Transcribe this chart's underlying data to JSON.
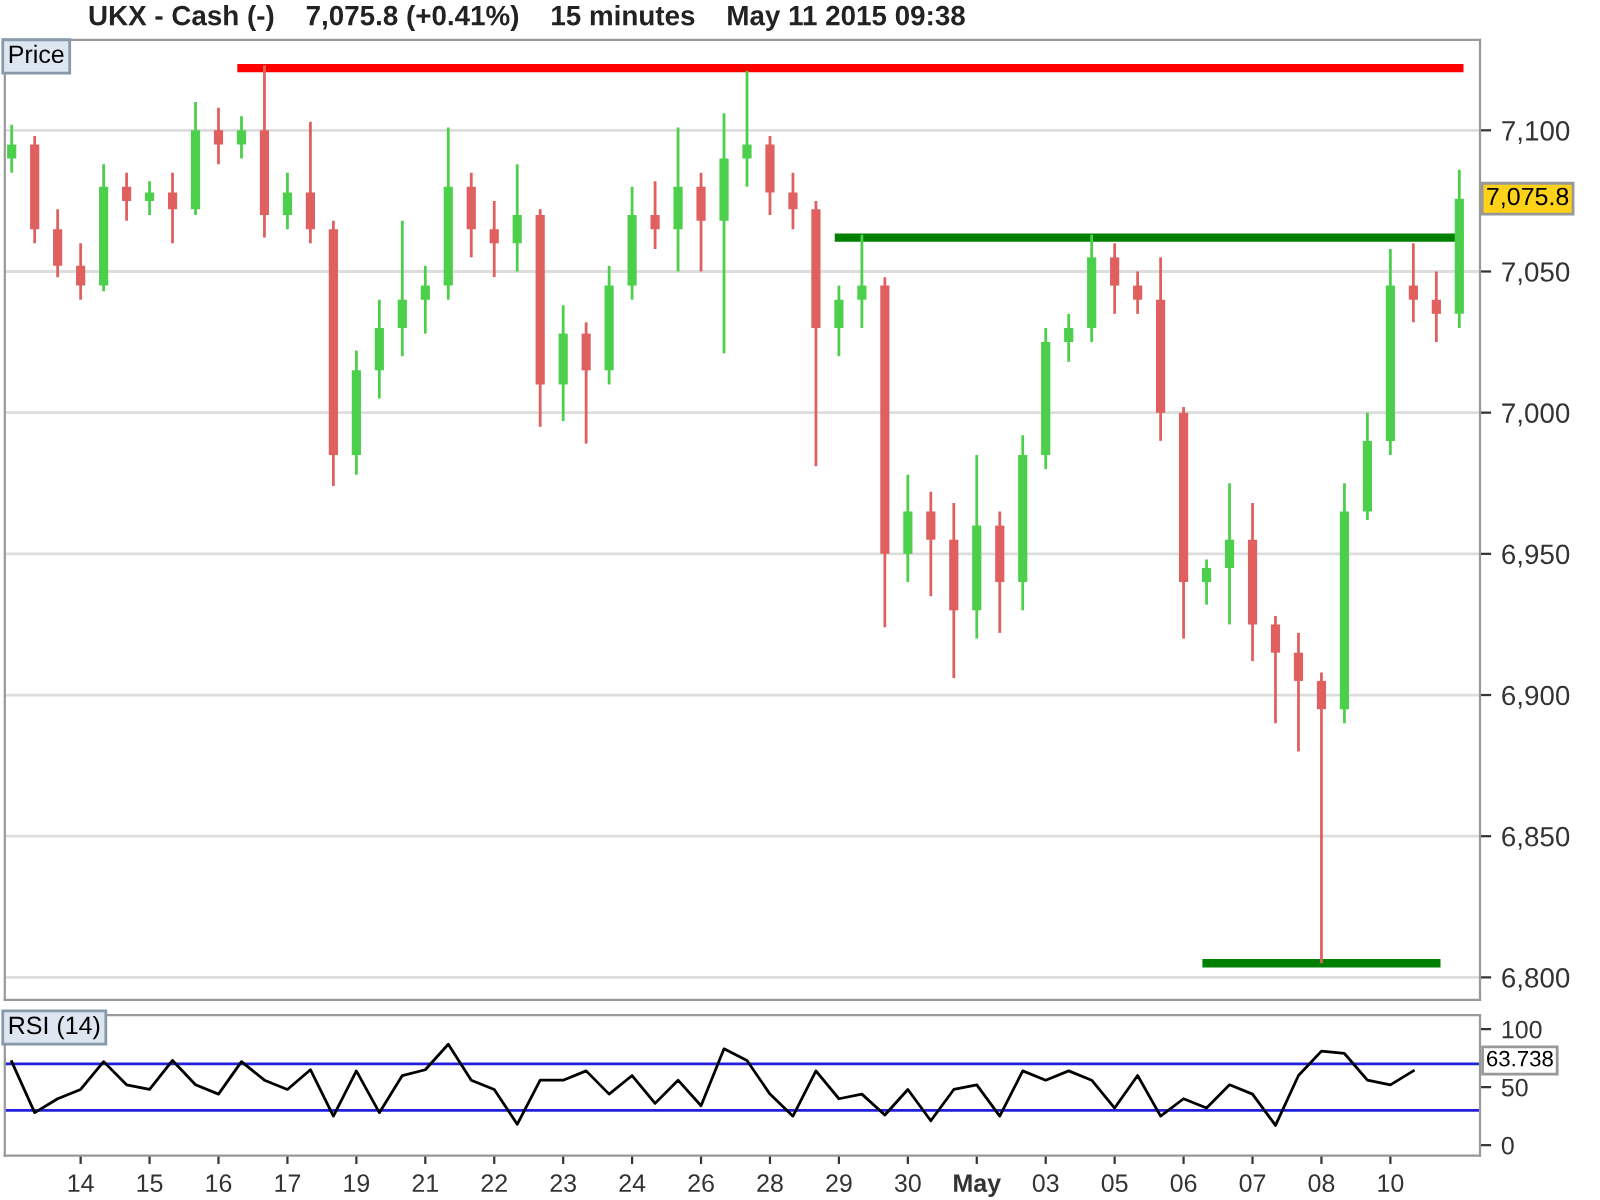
{
  "chart_data": [
    {
      "type": "candlestick",
      "title": "UKX - Cash (-)    7,075.8 (+0.41%)    15 minutes    May 11 2015 09:38",
      "ylabel": "Price",
      "categories": [
        null,
        null,
        null,
        null,
        null,
        null,
        null,
        null,
        null,
        null,
        null,
        null,
        null,
        null,
        null,
        null,
        null,
        null,
        null,
        null,
        null,
        null,
        null,
        null,
        null,
        null,
        null,
        null,
        null,
        null,
        null,
        null,
        null,
        null,
        null,
        null,
        null,
        null,
        null,
        null,
        null,
        null,
        null,
        null,
        null,
        null,
        null,
        null,
        null,
        null,
        null,
        null,
        null,
        null,
        null,
        null,
        null,
        null,
        null,
        null,
        null,
        null,
        null,
        null
      ],
      "ohlc": [
        [
          7090,
          7102,
          7085,
          7095
        ],
        [
          7095,
          7098,
          7060,
          7065
        ],
        [
          7065,
          7072,
          7048,
          7052
        ],
        [
          7052,
          7060,
          7040,
          7045
        ],
        [
          7045,
          7088,
          7043,
          7080
        ],
        [
          7080,
          7085,
          7068,
          7075
        ],
        [
          7075,
          7082,
          7070,
          7078
        ],
        [
          7078,
          7085,
          7060,
          7072
        ],
        [
          7072,
          7110,
          7070,
          7100
        ],
        [
          7100,
          7108,
          7088,
          7095
        ],
        [
          7095,
          7105,
          7090,
          7100
        ],
        [
          7100,
          7123,
          7062,
          7070
        ],
        [
          7070,
          7085,
          7065,
          7078
        ],
        [
          7078,
          7103,
          7060,
          7065
        ],
        [
          7065,
          7068,
          6974,
          6985
        ],
        [
          6985,
          7022,
          6978,
          7015
        ],
        [
          7015,
          7040,
          7005,
          7030
        ],
        [
          7030,
          7068,
          7020,
          7040
        ],
        [
          7040,
          7052,
          7028,
          7045
        ],
        [
          7045,
          7101,
          7040,
          7080
        ],
        [
          7080,
          7085,
          7055,
          7065
        ],
        [
          7065,
          7075,
          7048,
          7060
        ],
        [
          7060,
          7088,
          7050,
          7070
        ],
        [
          7070,
          7072,
          6995,
          7010
        ],
        [
          7010,
          7038,
          6997,
          7028
        ],
        [
          7028,
          7032,
          6989,
          7015
        ],
        [
          7015,
          7052,
          7010,
          7045
        ],
        [
          7045,
          7080,
          7040,
          7070
        ],
        [
          7070,
          7082,
          7058,
          7065
        ],
        [
          7065,
          7101,
          7050,
          7080
        ],
        [
          7080,
          7085,
          7050,
          7068
        ],
        [
          7068,
          7106,
          7021,
          7090
        ],
        [
          7090,
          7121,
          7080,
          7095
        ],
        [
          7095,
          7098,
          7070,
          7078
        ],
        [
          7078,
          7085,
          7065,
          7072
        ],
        [
          7072,
          7075,
          6981,
          7030
        ],
        [
          7030,
          7045,
          7020,
          7040
        ],
        [
          7040,
          7063,
          7030,
          7045
        ],
        [
          7045,
          7048,
          6924,
          6950
        ],
        [
          6950,
          6978,
          6940,
          6965
        ],
        [
          6965,
          6972,
          6935,
          6955
        ],
        [
          6955,
          6968,
          6906,
          6930
        ],
        [
          6930,
          6985,
          6920,
          6960
        ],
        [
          6960,
          6965,
          6922,
          6940
        ],
        [
          6940,
          6992,
          6930,
          6985
        ],
        [
          6985,
          7030,
          6980,
          7025
        ],
        [
          7025,
          7035,
          7018,
          7030
        ],
        [
          7030,
          7063,
          7025,
          7055
        ],
        [
          7055,
          7060,
          7035,
          7045
        ],
        [
          7045,
          7050,
          7035,
          7040
        ],
        [
          7040,
          7055,
          6990,
          7000
        ],
        [
          7000,
          7002,
          6920,
          6940
        ],
        [
          6940,
          6948,
          6932,
          6945
        ],
        [
          6945,
          6975,
          6925,
          6955
        ],
        [
          6955,
          6968,
          6912,
          6925
        ],
        [
          6925,
          6928,
          6890,
          6915
        ],
        [
          6915,
          6922,
          6880,
          6905
        ],
        [
          6905,
          6908,
          6805,
          6895
        ],
        [
          6895,
          6975,
          6890,
          6965
        ],
        [
          6965,
          7000,
          6962,
          6990
        ],
        [
          6990,
          7058,
          6985,
          7045
        ],
        [
          7045,
          7060,
          7032,
          7040
        ],
        [
          7040,
          7050,
          7025,
          7035
        ],
        [
          7035,
          7086,
          7030,
          7075.8
        ]
      ],
      "series": [
        {
          "type": "line",
          "color": "#ff0000",
          "values": [
            null,
            null,
            null,
            null,
            null,
            null,
            null,
            null,
            null,
            null,
            7122,
            7122,
            7122,
            7122,
            7122,
            7122,
            7122,
            7122,
            7122,
            7122,
            7122,
            7122,
            7122,
            7122,
            7122,
            7122,
            7122,
            7122,
            7122,
            7122,
            7122,
            7122,
            7122,
            7122,
            7122,
            7122,
            7122,
            7122,
            7122,
            7122,
            7122,
            7122,
            7122,
            7122,
            7122,
            7122,
            7122,
            7122,
            7122,
            7122,
            7122,
            7122,
            7122,
            7122,
            7122,
            7122,
            7122,
            7122,
            7122,
            7122,
            7122,
            7122,
            7122,
            7122
          ]
        },
        {
          "type": "line",
          "color": "#008000",
          "values": [
            null,
            null,
            null,
            null,
            null,
            null,
            null,
            null,
            null,
            null,
            null,
            null,
            null,
            null,
            null,
            null,
            null,
            null,
            null,
            null,
            null,
            null,
            null,
            null,
            null,
            null,
            null,
            null,
            null,
            null,
            null,
            null,
            null,
            null,
            null,
            null,
            7062,
            7062,
            7062,
            7062,
            7062,
            7062,
            7062,
            7062,
            7062,
            7062,
            7062,
            7062,
            7062,
            7062,
            7062,
            7062,
            7062,
            7062,
            7062,
            7062,
            7062,
            7062,
            7062,
            7062,
            7062,
            7062,
            7062,
            7062
          ]
        },
        {
          "type": "line",
          "color": "#008000",
          "values": [
            null,
            null,
            null,
            null,
            null,
            null,
            null,
            null,
            null,
            null,
            null,
            null,
            null,
            null,
            null,
            null,
            null,
            null,
            null,
            null,
            null,
            null,
            null,
            null,
            null,
            null,
            null,
            null,
            null,
            null,
            null,
            null,
            null,
            null,
            null,
            null,
            null,
            null,
            null,
            null,
            null,
            null,
            null,
            null,
            null,
            null,
            null,
            null,
            null,
            null,
            null,
            null,
            6805,
            6805,
            6805,
            6805,
            6805,
            6805,
            6805,
            6805,
            6805,
            6805,
            6805,
            null
          ]
        }
      ],
      "ylim": [
        6792,
        7132
      ],
      "yticks": [
        {
          "value": 6800,
          "label": "6,800"
        },
        {
          "value": 6850,
          "label": "6,850"
        },
        {
          "value": 6900,
          "label": "6,900"
        },
        {
          "value": 6950,
          "label": "6,950"
        },
        {
          "value": 7000,
          "label": "7,000"
        },
        {
          "value": 7050,
          "label": "7,050"
        },
        {
          "value": 7100,
          "label": "7,100"
        }
      ],
      "annotations": [
        "7,075.8"
      ],
      "grid": "y"
    },
    {
      "type": "line",
      "ylabel": "RSI (14)",
      "categories": [
        null,
        null,
        null,
        "14",
        null,
        null,
        "15",
        null,
        null,
        "16",
        null,
        null,
        "17",
        null,
        null,
        "19",
        null,
        null,
        "21",
        null,
        null,
        "22",
        null,
        null,
        "23",
        null,
        null,
        "24",
        null,
        null,
        "26",
        null,
        null,
        "28",
        null,
        null,
        "29",
        null,
        null,
        "30",
        null,
        null,
        "May",
        null,
        null,
        "03",
        null,
        null,
        "05",
        null,
        null,
        "06",
        null,
        null,
        "07",
        null,
        null,
        "08",
        null,
        null,
        "10",
        null,
        null,
        null
      ],
      "series": [
        {
          "color": "#000000",
          "values": [
            72,
            28,
            40,
            48,
            72,
            52,
            48,
            73,
            52,
            44,
            72,
            56,
            48,
            65,
            25,
            64,
            28,
            60,
            65,
            87,
            56,
            48,
            18,
            56,
            56,
            64,
            44,
            60,
            36,
            56,
            34,
            83,
            73,
            44,
            25,
            64,
            40,
            44,
            26,
            48,
            21,
            48,
            52,
            25,
            64,
            56,
            64,
            56,
            32,
            60,
            25,
            40,
            32,
            52,
            44,
            17,
            60,
            81,
            79,
            56,
            52,
            64,
            null,
            null
          ]
        }
      ],
      "ylim": [
        -9,
        112
      ],
      "yticks": [
        0,
        50,
        100
      ],
      "ref_lines": [
        {
          "axis": "y",
          "value": 70,
          "color": "#2020dd"
        },
        {
          "axis": "y",
          "value": 30,
          "color": "#2020dd"
        }
      ],
      "annotations": [
        "63.738"
      ]
    }
  ]
}
